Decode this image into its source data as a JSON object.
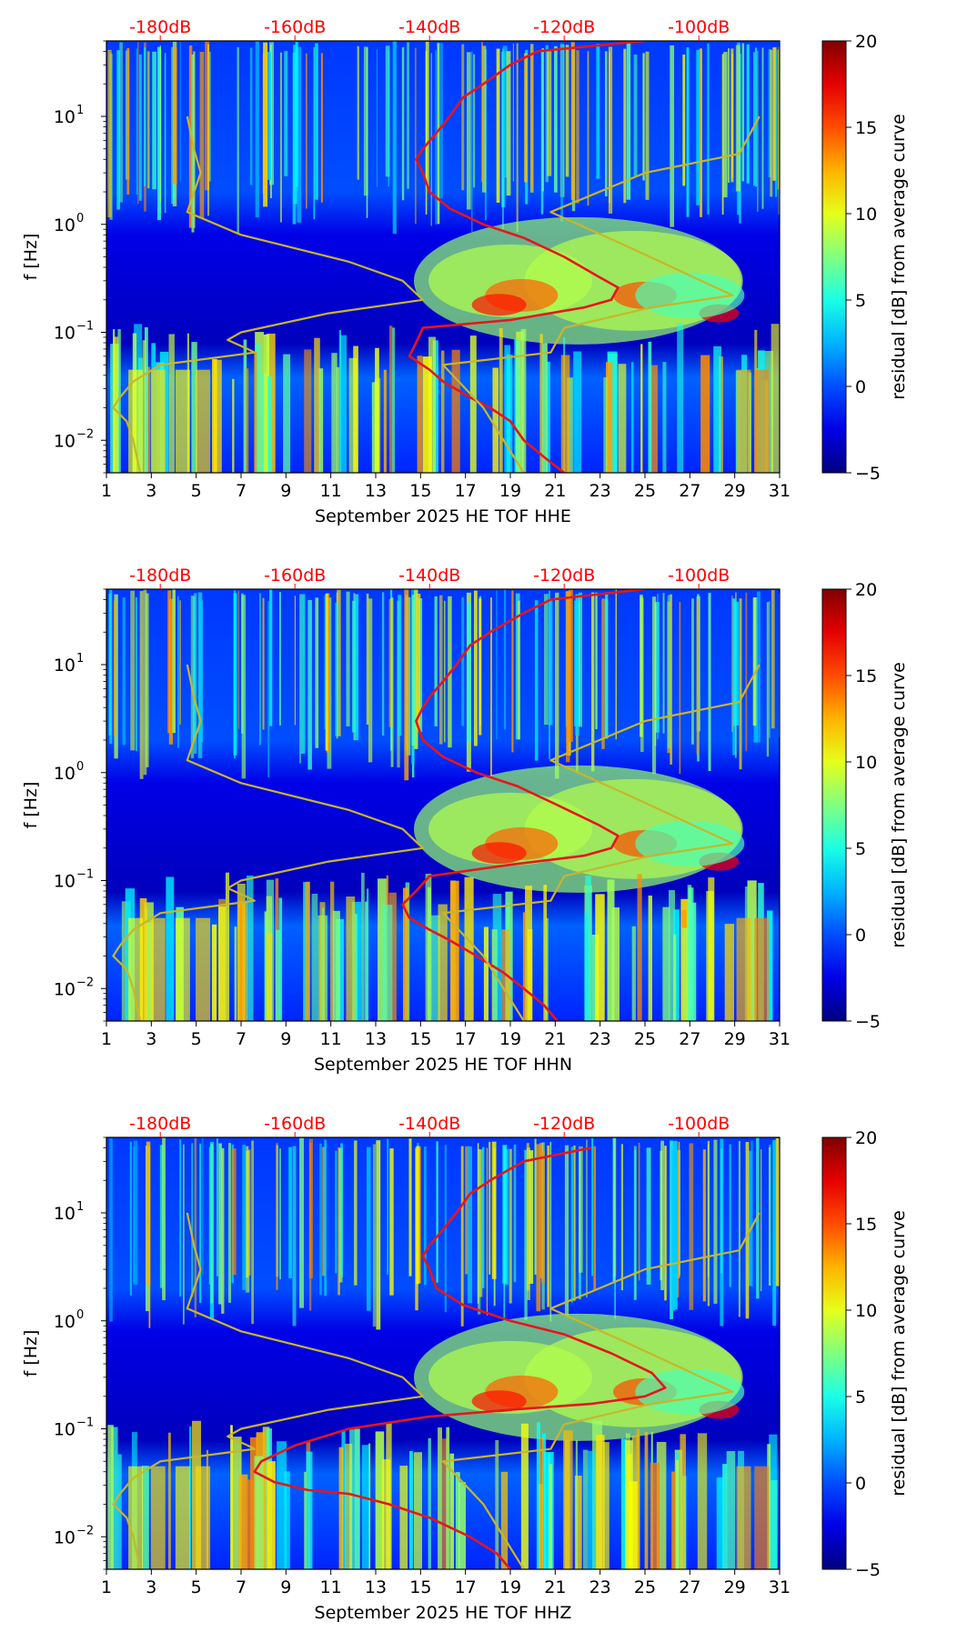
{
  "chart_data": [
    {
      "type": "heatmap",
      "xlabel": "September 2025 HE TOF  HHE",
      "ylabel": "f [Hz]",
      "x_ticks": [
        "1",
        "3",
        "5",
        "7",
        "9",
        "11",
        "13",
        "15",
        "17",
        "19",
        "21",
        "23",
        "25",
        "27",
        "29",
        "31"
      ],
      "x_range": [
        1,
        31
      ],
      "y_range": [
        0.005,
        50
      ],
      "y_scale": "log",
      "y_ticks": [
        {
          "value": 0.01,
          "base": "10",
          "exp": "−2"
        },
        {
          "value": 0.1,
          "base": "10",
          "exp": "−1"
        },
        {
          "value": 1,
          "base": "10",
          "exp": "0"
        },
        {
          "value": 10,
          "base": "10",
          "exp": "1"
        }
      ],
      "top_axis_ticks": [
        "-180dB",
        "-160dB",
        "-140dB",
        "-120dB",
        "-100dB"
      ],
      "top_axis_range": [
        -188,
        -88
      ],
      "colorbar": {
        "label": "residual [dB] from average curve",
        "range": [
          -5,
          20
        ],
        "ticks": [
          "−5",
          "0",
          "5",
          "10",
          "15",
          "20"
        ]
      },
      "series": [
        {
          "name": "average PSD (red)",
          "color": "#e8151b",
          "unit": "dB",
          "axis": "top",
          "points": [
            [
              -108,
              50
            ],
            [
              -124,
              40
            ],
            [
              -128,
              30
            ],
            [
              -132,
              20
            ],
            [
              -135,
              15
            ],
            [
              -137,
              10
            ],
            [
              -139,
              7
            ],
            [
              -141,
              5
            ],
            [
              -142,
              4
            ],
            [
              -141,
              3
            ],
            [
              -140,
              2
            ],
            [
              -137,
              1.4
            ],
            [
              -132,
              1.0
            ],
            [
              -126,
              0.75
            ],
            [
              -120,
              0.5
            ],
            [
              -115,
              0.33
            ],
            [
              -112,
              0.26
            ],
            [
              -113,
              0.2
            ],
            [
              -117,
              0.17
            ],
            [
              -128,
              0.13
            ],
            [
              -141,
              0.11
            ],
            [
              -142,
              0.08
            ],
            [
              -143,
              0.06
            ],
            [
              -140,
              0.045
            ],
            [
              -138,
              0.035
            ],
            [
              -134,
              0.025
            ],
            [
              -131,
              0.02
            ],
            [
              -128,
              0.015
            ],
            [
              -126,
              0.01
            ],
            [
              -123,
              0.007
            ],
            [
              -120,
              0.005
            ]
          ]
        },
        {
          "name": "low-noise model (yellow)",
          "color": "#c8b62a",
          "unit": "dB",
          "axis": "top",
          "points": [
            [
              -176,
              10
            ],
            [
              -175,
              5
            ],
            [
              -174,
              3
            ],
            [
              -176,
              1.3
            ],
            [
              -168,
              0.8
            ],
            [
              -152,
              0.45
            ],
            [
              -144,
              0.3
            ],
            [
              -141,
              0.2
            ],
            [
              -155,
              0.15
            ],
            [
              -168,
              0.1
            ],
            [
              -170,
              0.085
            ],
            [
              -167,
              0.07
            ],
            [
              -166,
              0.065
            ],
            [
              -180,
              0.05
            ],
            [
              -184,
              0.035
            ],
            [
              -186,
              0.025
            ],
            [
              -187,
              0.02
            ],
            [
              -185,
              0.015
            ],
            [
              -184,
              0.01
            ],
            [
              -183,
              0.005
            ]
          ]
        },
        {
          "name": "high-noise model (yellow)",
          "color": "#c8b62a",
          "unit": "dB",
          "axis": "top",
          "points": [
            [
              -91,
              10
            ],
            [
              -94,
              4.5
            ],
            [
              -108,
              3
            ],
            [
              -122,
              1.3
            ],
            [
              -110,
              0.6
            ],
            [
              -95,
              0.22
            ],
            [
              -107,
              0.17
            ],
            [
              -120,
              0.11
            ],
            [
              -122,
              0.065
            ],
            [
              -138,
              0.05
            ],
            [
              -132,
              0.02
            ],
            [
              -126,
              0.005
            ]
          ]
        }
      ]
    },
    {
      "type": "heatmap",
      "xlabel": "September 2025 HE TOF  HHN",
      "ylabel": "f [Hz]",
      "x_ticks": [
        "1",
        "3",
        "5",
        "7",
        "9",
        "11",
        "13",
        "15",
        "17",
        "19",
        "21",
        "23",
        "25",
        "27",
        "29",
        "31"
      ],
      "x_range": [
        1,
        31
      ],
      "y_range": [
        0.005,
        50
      ],
      "y_scale": "log",
      "y_ticks": [
        {
          "value": 0.01,
          "base": "10",
          "exp": "−2"
        },
        {
          "value": 0.1,
          "base": "10",
          "exp": "−1"
        },
        {
          "value": 1,
          "base": "10",
          "exp": "0"
        },
        {
          "value": 10,
          "base": "10",
          "exp": "1"
        }
      ],
      "top_axis_ticks": [
        "-180dB",
        "-160dB",
        "-140dB",
        "-120dB",
        "-100dB"
      ],
      "top_axis_range": [
        -188,
        -88
      ],
      "colorbar": {
        "label": "residual [dB] from average curve",
        "range": [
          -5,
          20
        ],
        "ticks": [
          "−5",
          "0",
          "5",
          "10",
          "15",
          "20"
        ]
      },
      "series": [
        {
          "name": "average PSD (red)",
          "color": "#e8151b",
          "unit": "dB",
          "axis": "top",
          "points": [
            [
              -108,
              50
            ],
            [
              -122,
              40
            ],
            [
              -126,
              30
            ],
            [
              -131,
              20
            ],
            [
              -134,
              15
            ],
            [
              -136,
              10
            ],
            [
              -138,
              7
            ],
            [
              -140,
              5
            ],
            [
              -141,
              4
            ],
            [
              -142,
              3
            ],
            [
              -141,
              2
            ],
            [
              -138,
              1.4
            ],
            [
              -133,
              1.0
            ],
            [
              -127,
              0.75
            ],
            [
              -121,
              0.5
            ],
            [
              -115,
              0.33
            ],
            [
              -112,
              0.26
            ],
            [
              -113,
              0.2
            ],
            [
              -117,
              0.17
            ],
            [
              -128,
              0.14
            ],
            [
              -140,
              0.11
            ],
            [
              -142,
              0.08
            ],
            [
              -144,
              0.06
            ],
            [
              -143,
              0.045
            ],
            [
              -140,
              0.035
            ],
            [
              -137,
              0.028
            ],
            [
              -133,
              0.02
            ],
            [
              -129,
              0.014
            ],
            [
              -126,
              0.01
            ],
            [
              -123,
              0.007
            ],
            [
              -121,
              0.005
            ]
          ]
        },
        {
          "name": "low-noise model (yellow)",
          "color": "#c8b62a",
          "unit": "dB",
          "axis": "top",
          "points": [
            [
              -176,
              10
            ],
            [
              -175,
              5
            ],
            [
              -174,
              3
            ],
            [
              -176,
              1.3
            ],
            [
              -168,
              0.8
            ],
            [
              -152,
              0.45
            ],
            [
              -144,
              0.3
            ],
            [
              -141,
              0.2
            ],
            [
              -155,
              0.15
            ],
            [
              -168,
              0.1
            ],
            [
              -170,
              0.085
            ],
            [
              -167,
              0.07
            ],
            [
              -166,
              0.065
            ],
            [
              -180,
              0.05
            ],
            [
              -184,
              0.035
            ],
            [
              -186,
              0.025
            ],
            [
              -187,
              0.02
            ],
            [
              -185,
              0.015
            ],
            [
              -184,
              0.01
            ],
            [
              -183,
              0.005
            ]
          ]
        },
        {
          "name": "high-noise model (yellow)",
          "color": "#c8b62a",
          "unit": "dB",
          "axis": "top",
          "points": [
            [
              -91,
              10
            ],
            [
              -94,
              4.5
            ],
            [
              -108,
              3
            ],
            [
              -122,
              1.3
            ],
            [
              -110,
              0.6
            ],
            [
              -95,
              0.22
            ],
            [
              -107,
              0.17
            ],
            [
              -120,
              0.11
            ],
            [
              -122,
              0.065
            ],
            [
              -138,
              0.05
            ],
            [
              -132,
              0.02
            ],
            [
              -126,
              0.005
            ]
          ]
        }
      ]
    },
    {
      "type": "heatmap",
      "xlabel": "September 2025 HE TOF  HHZ",
      "ylabel": "f [Hz]",
      "x_ticks": [
        "1",
        "3",
        "5",
        "7",
        "9",
        "11",
        "13",
        "15",
        "17",
        "19",
        "21",
        "23",
        "25",
        "27",
        "29",
        "31"
      ],
      "x_range": [
        1,
        31
      ],
      "y_range": [
        0.005,
        50
      ],
      "y_scale": "log",
      "y_ticks": [
        {
          "value": 0.01,
          "base": "10",
          "exp": "−2"
        },
        {
          "value": 0.1,
          "base": "10",
          "exp": "−1"
        },
        {
          "value": 1,
          "base": "10",
          "exp": "0"
        },
        {
          "value": 10,
          "base": "10",
          "exp": "1"
        }
      ],
      "top_axis_ticks": [
        "-180dB",
        "-160dB",
        "-140dB",
        "-120dB",
        "-100dB"
      ],
      "top_axis_range": [
        -188,
        -88
      ],
      "colorbar": {
        "label": "residual [dB] from average curve",
        "range": [
          -5,
          20
        ],
        "ticks": [
          "−5",
          "0",
          "5",
          "10",
          "15",
          "20"
        ]
      },
      "series": [
        {
          "name": "average PSD (red)",
          "color": "#e8151b",
          "unit": "dB",
          "axis": "top",
          "points": [
            [
              -116,
              40
            ],
            [
              -126,
              30
            ],
            [
              -131,
              20
            ],
            [
              -134,
              15
            ],
            [
              -136,
              10
            ],
            [
              -138,
              7
            ],
            [
              -140,
              5
            ],
            [
              -141,
              4
            ],
            [
              -140,
              3
            ],
            [
              -139,
              2
            ],
            [
              -135,
              1.4
            ],
            [
              -128,
              1.0
            ],
            [
              -120,
              0.75
            ],
            [
              -113,
              0.5
            ],
            [
              -107,
              0.33
            ],
            [
              -105,
              0.24
            ],
            [
              -108,
              0.2
            ],
            [
              -116,
              0.17
            ],
            [
              -128,
              0.15
            ],
            [
              -140,
              0.13
            ],
            [
              -152,
              0.1
            ],
            [
              -160,
              0.07
            ],
            [
              -165,
              0.05
            ],
            [
              -166,
              0.04
            ],
            [
              -163,
              0.032
            ],
            [
              -158,
              0.027
            ],
            [
              -152,
              0.025
            ],
            [
              -146,
              0.02
            ],
            [
              -140,
              0.015
            ],
            [
              -134,
              0.01
            ],
            [
              -130,
              0.007
            ],
            [
              -128,
              0.005
            ]
          ]
        },
        {
          "name": "low-noise model (yellow)",
          "color": "#c8b62a",
          "unit": "dB",
          "axis": "top",
          "points": [
            [
              -176,
              10
            ],
            [
              -175,
              5
            ],
            [
              -174,
              3
            ],
            [
              -176,
              1.3
            ],
            [
              -168,
              0.8
            ],
            [
              -152,
              0.45
            ],
            [
              -144,
              0.3
            ],
            [
              -141,
              0.2
            ],
            [
              -155,
              0.15
            ],
            [
              -168,
              0.1
            ],
            [
              -170,
              0.085
            ],
            [
              -167,
              0.07
            ],
            [
              -166,
              0.065
            ],
            [
              -180,
              0.05
            ],
            [
              -184,
              0.035
            ],
            [
              -186,
              0.025
            ],
            [
              -187,
              0.02
            ],
            [
              -185,
              0.015
            ],
            [
              -184,
              0.01
            ],
            [
              -183,
              0.005
            ]
          ]
        },
        {
          "name": "high-noise model (yellow)",
          "color": "#c8b62a",
          "unit": "dB",
          "axis": "top",
          "points": [
            [
              -91,
              10
            ],
            [
              -94,
              4.5
            ],
            [
              -108,
              3
            ],
            [
              -122,
              1.3
            ],
            [
              -110,
              0.6
            ],
            [
              -95,
              0.22
            ],
            [
              -107,
              0.17
            ],
            [
              -120,
              0.11
            ],
            [
              -122,
              0.065
            ],
            [
              -138,
              0.05
            ],
            [
              -132,
              0.02
            ],
            [
              -126,
              0.005
            ]
          ]
        }
      ]
    }
  ]
}
